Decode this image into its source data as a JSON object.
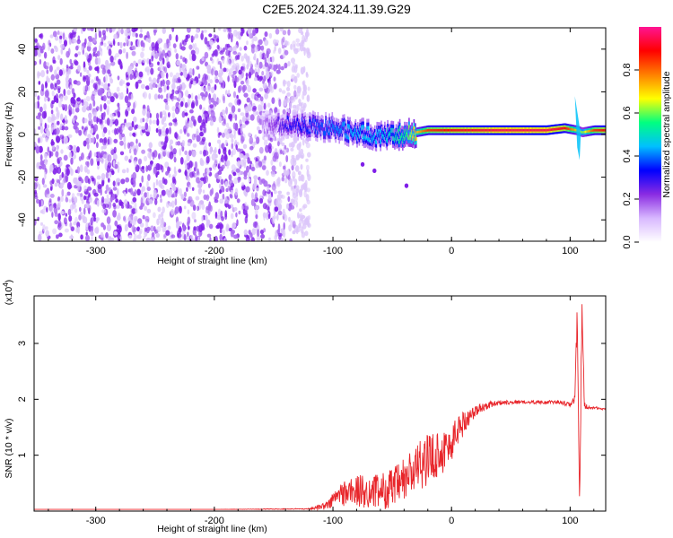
{
  "title": "C2E5.2024.324.11.39.G29",
  "chart_data": [
    {
      "type": "heatmap",
      "xlabel": "Height of straight line (km)",
      "ylabel": "Frequency (Hz)",
      "xlim": [
        -352,
        130
      ],
      "ylim": [
        -50,
        50
      ],
      "xticks": [
        -300,
        -200,
        -100,
        0,
        100
      ],
      "xtick_labels": [
        "-300",
        "-200",
        "-100",
        "0",
        "100"
      ],
      "yticks": [
        -40,
        -20,
        0,
        20,
        40
      ],
      "ytick_labels": [
        "-40",
        "-20",
        "0",
        "20",
        "40"
      ],
      "colorbar": {
        "label": "Normalized spectral amplitude",
        "range": [
          0,
          1
        ],
        "ticks": [
          0,
          0.2,
          0.4,
          0.6,
          0.8
        ],
        "tick_labels": [
          "0.0",
          "0.2",
          "0.4",
          "0.6",
          "0.8"
        ],
        "colors": [
          "#ffffff",
          "#d8b8ff",
          "#8a2be2",
          "#0000ff",
          "#00bfff",
          "#00ff80",
          "#ffff00",
          "#ff8000",
          "#ff0000",
          "#ff1493"
        ]
      },
      "ridge": {
        "x": [
          -160,
          -140,
          -120,
          -100,
          -80,
          -60,
          -40,
          -20,
          0,
          20,
          40,
          60,
          80,
          95,
          105,
          110,
          120,
          130
        ],
        "frequency": [
          4,
          5,
          4,
          3,
          1,
          -1,
          0,
          2,
          2,
          2,
          2,
          2,
          2,
          3,
          2,
          1,
          2,
          2
        ],
        "amplitude": [
          0.15,
          0.3,
          0.35,
          0.4,
          0.45,
          0.45,
          0.55,
          0.85,
          0.9,
          0.92,
          0.95,
          0.95,
          0.95,
          0.9,
          0.7,
          0.6,
          0.85,
          0.9
        ]
      }
    },
    {
      "type": "line",
      "xlabel": "Height of straight line (km)",
      "ylabel": "SNR (10 * v/v)",
      "scale_label": "(x10",
      "scale_exponent": "4",
      "scale_suffix": ")",
      "xlim": [
        -352,
        130
      ],
      "ylim": [
        0,
        3.85
      ],
      "xticks": [
        -300,
        -200,
        -100,
        0,
        100
      ],
      "xtick_labels": [
        "-300",
        "-200",
        "-100",
        "0",
        "100"
      ],
      "yticks": [
        1,
        2,
        3
      ],
      "ytick_labels": [
        "1",
        "2",
        "3"
      ],
      "series": [
        {
          "color": "#e8252a",
          "x": [
            -352,
            -300,
            -200,
            -120,
            -105,
            -95,
            -85,
            -75,
            -65,
            -55,
            -45,
            -35,
            -25,
            -15,
            -5,
            0,
            5,
            15,
            25,
            35,
            45,
            60,
            75,
            90,
            100,
            104,
            106,
            108,
            110,
            112,
            115,
            120,
            130
          ],
          "y": [
            0.03,
            0.03,
            0.03,
            0.04,
            0.1,
            0.3,
            0.35,
            0.35,
            0.35,
            0.38,
            0.45,
            0.65,
            0.85,
            1.0,
            1.1,
            1.2,
            1.45,
            1.7,
            1.85,
            1.92,
            1.95,
            1.95,
            1.95,
            1.95,
            1.9,
            2.0,
            3.5,
            0.2,
            3.7,
            1.9,
            1.85,
            1.85,
            1.82
          ],
          "noise": [
            0,
            0,
            0,
            0.01,
            0.08,
            0.2,
            0.3,
            0.3,
            0.3,
            0.35,
            0.4,
            0.45,
            0.45,
            0.45,
            0.4,
            0.35,
            0.3,
            0.15,
            0.08,
            0.05,
            0.04,
            0.03,
            0.03,
            0.03,
            0.04,
            0.08,
            0.3,
            0.2,
            0.3,
            0.08,
            0.03,
            0.02,
            0.02
          ]
        }
      ]
    }
  ]
}
